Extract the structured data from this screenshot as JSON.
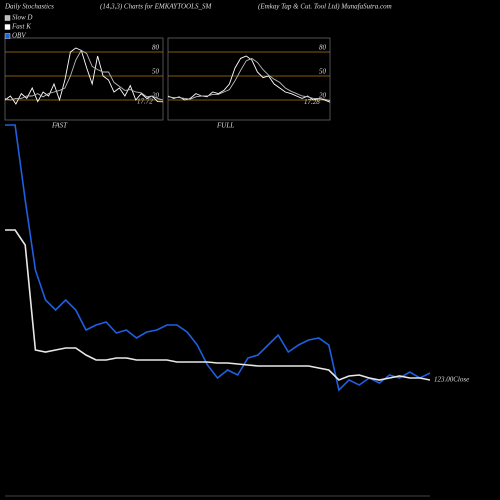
{
  "header": {
    "left": "Daily Stochastics",
    "center": "(14,3,3) Charts for EMKAYTOOLS_SM",
    "right": "(Emkay Tap & Cut. Tool Ltd) MunafaSutra.com"
  },
  "chart_data": [
    {
      "type": "line",
      "label": "FAST",
      "ylim": [
        0,
        100
      ],
      "yticks": [
        20,
        50,
        80
      ],
      "level_color": "#b07a10",
      "series": [
        {
          "name": "Fast K",
          "color": "#ffffff",
          "values": [
            20,
            25,
            15,
            28,
            22,
            35,
            18,
            30,
            25,
            40,
            20,
            45,
            80,
            85,
            82,
            60,
            40,
            75,
            50,
            45,
            30,
            35,
            25,
            38,
            20,
            28,
            22,
            25,
            18,
            17.72
          ]
        },
        {
          "name": "Slow D",
          "color": "#bbbbbb",
          "values": [
            22,
            20,
            22,
            22,
            25,
            25,
            28,
            24,
            28,
            30,
            32,
            35,
            50,
            70,
            82,
            78,
            62,
            58,
            55,
            55,
            42,
            37,
            32,
            33,
            30,
            29,
            24,
            25,
            22,
            20
          ]
        }
      ]
    },
    {
      "type": "line",
      "label": "FULL",
      "ylim": [
        0,
        100
      ],
      "yticks": [
        20,
        50,
        80
      ],
      "level_color": "#b07a10",
      "series": [
        {
          "color": "#ffffff",
          "values": [
            25,
            22,
            24,
            20,
            22,
            28,
            25,
            24,
            30,
            28,
            32,
            40,
            60,
            72,
            75,
            70,
            55,
            48,
            50,
            40,
            35,
            30,
            28,
            25,
            22,
            25,
            20,
            22,
            20,
            17.28
          ]
        },
        {
          "color": "#bbbbbb",
          "values": [
            24,
            23,
            23,
            22,
            21,
            24,
            25,
            25,
            27,
            27,
            30,
            33,
            44,
            57,
            69,
            72,
            67,
            58,
            51,
            46,
            42,
            35,
            31,
            28,
            25,
            24,
            22,
            22,
            21,
            19
          ]
        }
      ]
    },
    {
      "type": "line",
      "ylim": [
        68,
        253
      ],
      "y2lim": [
        10,
        380
      ],
      "annotation": "123.00Close",
      "series": [
        {
          "name": "OBV",
          "color": "#1f5fe0",
          "axis": "y2",
          "values": [
            375,
            375,
            300,
            230,
            200,
            190,
            200,
            190,
            170,
            175,
            178,
            167,
            170,
            162,
            168,
            170,
            175,
            175,
            168,
            155,
            135,
            122,
            130,
            125,
            142,
            145,
            155,
            165,
            148,
            155,
            160,
            162,
            155,
            110,
            120,
            115,
            122,
            117,
            125,
            122,
            128,
            122,
            127
          ]
        },
        {
          "color": "#e8e8e8",
          "values": [
            198,
            198,
            190.5,
            138,
            137,
            138,
            139,
            139,
            135.5,
            133,
            133,
            134,
            134,
            133,
            133,
            133,
            133,
            132,
            132,
            132,
            132,
            131.5,
            131.5,
            131,
            130.5,
            130,
            130,
            130,
            130,
            130,
            130,
            129,
            128,
            123,
            125,
            125.5,
            124,
            123,
            124,
            125,
            124,
            124,
            123
          ]
        }
      ]
    }
  ]
}
